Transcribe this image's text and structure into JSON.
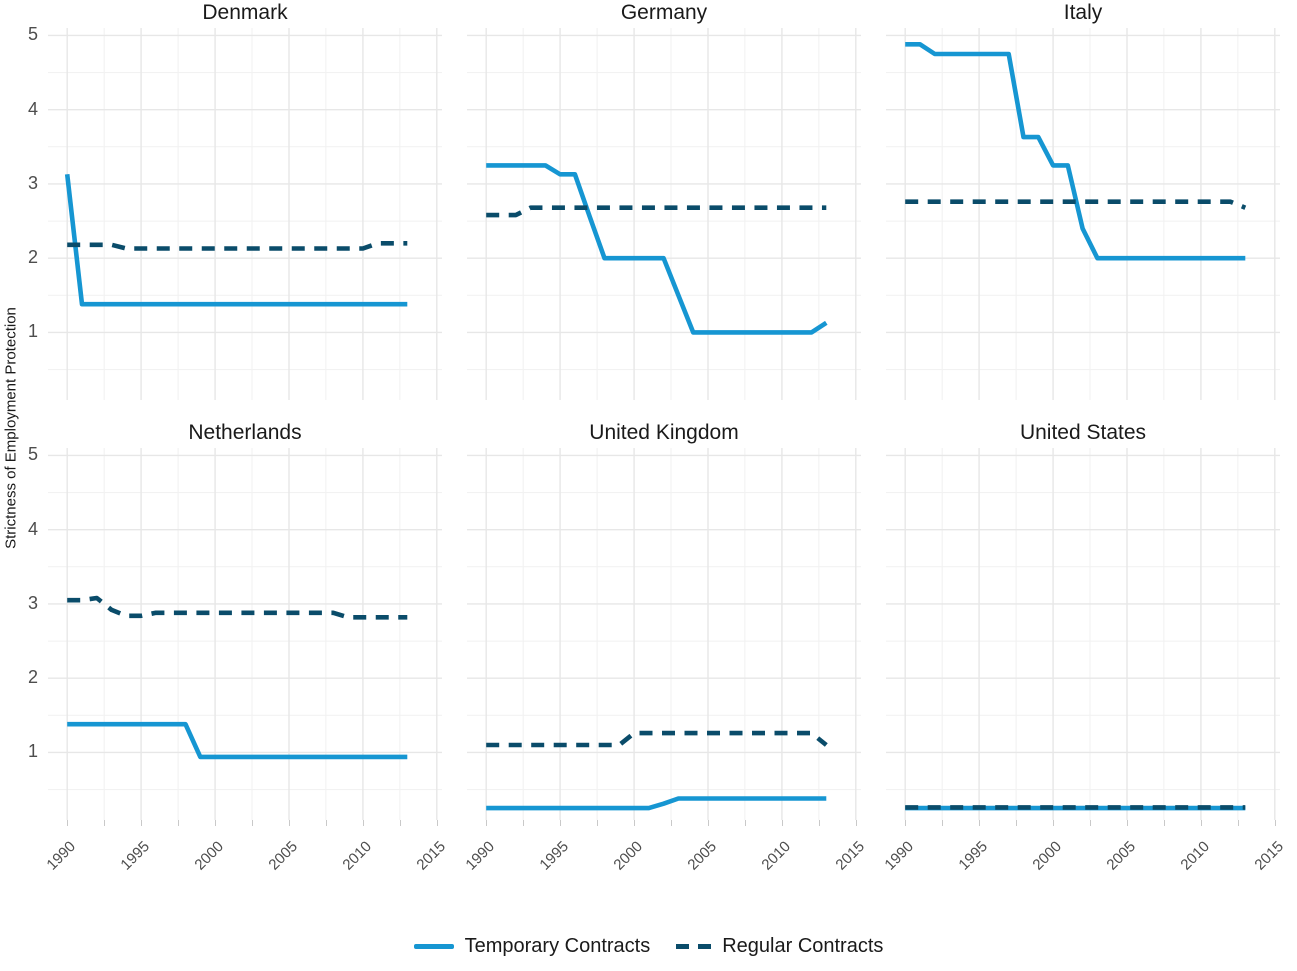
{
  "chart_data": {
    "type": "line",
    "title": "",
    "xlabel": "",
    "ylabel": "Strictness of Employment Protection",
    "legend_position": "bottom",
    "grid": true,
    "axis": {
      "xlim": [
        1988.7,
        2015.35
      ],
      "ylim": [
        0.09,
        5.1
      ],
      "x_ticks": [
        1990,
        1995,
        2000,
        2005,
        2010,
        2015
      ],
      "x_minor": [
        1992.5,
        1997.5,
        2002.5,
        2007.5,
        2012.5
      ],
      "y_ticks": [
        1,
        2,
        3,
        4,
        5
      ],
      "y_minor": [
        0.5,
        1.5,
        2.5,
        3.5,
        4.5
      ]
    },
    "series": [
      {
        "key": "temporary",
        "name": "Temporary Contracts",
        "color": "#1696d2",
        "dash": "solid"
      },
      {
        "key": "regular",
        "name": "Regular Contracts",
        "color": "#0a4c6a",
        "dash": "dashed"
      }
    ],
    "years": [
      1990,
      1991,
      1992,
      1993,
      1994,
      1995,
      1996,
      1997,
      1998,
      1999,
      2000,
      2001,
      2002,
      2003,
      2004,
      2005,
      2006,
      2007,
      2008,
      2009,
      2010,
      2011,
      2012,
      2013
    ],
    "facets": [
      {
        "title": "Denmark",
        "temporary": [
          3.13,
          1.38,
          1.38,
          1.38,
          1.38,
          1.38,
          1.38,
          1.38,
          1.38,
          1.38,
          1.38,
          1.38,
          1.38,
          1.38,
          1.38,
          1.38,
          1.38,
          1.38,
          1.38,
          1.38,
          1.38,
          1.38,
          1.38,
          1.38
        ],
        "regular": [
          2.18,
          2.18,
          2.18,
          2.18,
          2.13,
          2.13,
          2.13,
          2.13,
          2.13,
          2.13,
          2.13,
          2.13,
          2.13,
          2.13,
          2.13,
          2.13,
          2.13,
          2.13,
          2.13,
          2.13,
          2.13,
          2.2,
          2.2,
          2.2
        ]
      },
      {
        "title": "Germany",
        "temporary": [
          3.25,
          3.25,
          3.25,
          3.25,
          3.25,
          3.13,
          3.13,
          2.56,
          2.0,
          2.0,
          2.0,
          2.0,
          2.0,
          1.5,
          1.0,
          1.0,
          1.0,
          1.0,
          1.0,
          1.0,
          1.0,
          1.0,
          1.0,
          1.13
        ],
        "regular": [
          2.58,
          2.58,
          2.58,
          2.68,
          2.68,
          2.68,
          2.68,
          2.68,
          2.68,
          2.68,
          2.68,
          2.68,
          2.68,
          2.68,
          2.68,
          2.68,
          2.68,
          2.68,
          2.68,
          2.68,
          2.68,
          2.68,
          2.68,
          2.68
        ]
      },
      {
        "title": "Italy",
        "temporary": [
          4.88,
          4.88,
          4.75,
          4.75,
          4.75,
          4.75,
          4.75,
          4.75,
          3.63,
          3.63,
          3.25,
          3.25,
          2.4,
          2.0,
          2.0,
          2.0,
          2.0,
          2.0,
          2.0,
          2.0,
          2.0,
          2.0,
          2.0,
          2.0
        ],
        "regular": [
          2.76,
          2.76,
          2.76,
          2.76,
          2.76,
          2.76,
          2.76,
          2.76,
          2.76,
          2.76,
          2.76,
          2.76,
          2.76,
          2.76,
          2.76,
          2.76,
          2.76,
          2.76,
          2.76,
          2.76,
          2.76,
          2.76,
          2.76,
          2.68
        ]
      },
      {
        "title": "Netherlands",
        "temporary": [
          1.38,
          1.38,
          1.38,
          1.38,
          1.38,
          1.38,
          1.38,
          1.38,
          1.38,
          0.94,
          0.94,
          0.94,
          0.94,
          0.94,
          0.94,
          0.94,
          0.94,
          0.94,
          0.94,
          0.94,
          0.94,
          0.94,
          0.94,
          0.94
        ],
        "regular": [
          3.05,
          3.05,
          3.08,
          2.92,
          2.84,
          2.84,
          2.88,
          2.88,
          2.88,
          2.88,
          2.88,
          2.88,
          2.88,
          2.88,
          2.88,
          2.88,
          2.88,
          2.88,
          2.88,
          2.82,
          2.82,
          2.82,
          2.82,
          2.82
        ]
      },
      {
        "title": "United Kingdom",
        "temporary": [
          0.25,
          0.25,
          0.25,
          0.25,
          0.25,
          0.25,
          0.25,
          0.25,
          0.25,
          0.25,
          0.25,
          0.25,
          0.31,
          0.38,
          0.38,
          0.38,
          0.38,
          0.38,
          0.38,
          0.38,
          0.38,
          0.38,
          0.38,
          0.38
        ],
        "regular": [
          1.1,
          1.1,
          1.1,
          1.1,
          1.1,
          1.1,
          1.1,
          1.1,
          1.1,
          1.1,
          1.26,
          1.26,
          1.26,
          1.26,
          1.26,
          1.26,
          1.26,
          1.26,
          1.26,
          1.26,
          1.26,
          1.26,
          1.26,
          1.1
        ]
      },
      {
        "title": "United States",
        "temporary": [
          0.25,
          0.25,
          0.25,
          0.25,
          0.25,
          0.25,
          0.25,
          0.25,
          0.25,
          0.25,
          0.25,
          0.25,
          0.25,
          0.25,
          0.25,
          0.25,
          0.25,
          0.25,
          0.25,
          0.25,
          0.25,
          0.25,
          0.25,
          0.25
        ],
        "regular": [
          0.26,
          0.26,
          0.26,
          0.26,
          0.26,
          0.26,
          0.26,
          0.26,
          0.26,
          0.26,
          0.26,
          0.26,
          0.26,
          0.26,
          0.26,
          0.26,
          0.26,
          0.26,
          0.26,
          0.26,
          0.26,
          0.26,
          0.26,
          0.26
        ]
      }
    ],
    "style": {
      "grid_major_color": "#e7e7e7",
      "grid_minor_color": "#f1f1f1",
      "tick_mark_color": "#c9c9c9",
      "tick_text_color": "#4d4d4d",
      "title_text_color": "#1a1a1a"
    }
  }
}
